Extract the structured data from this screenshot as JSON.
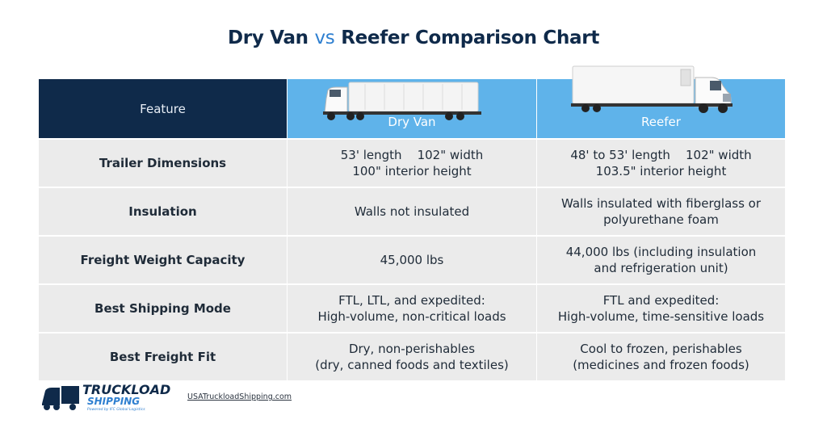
{
  "title": {
    "part1": "Dry Van",
    "vs": "vs",
    "part2": "Reefer Comparison Chart"
  },
  "header": {
    "feature": "Feature",
    "dry_van": "Dry Van",
    "reefer": "Reefer"
  },
  "rows": [
    {
      "feature": "Trailer Dimensions",
      "dry_van": [
        "53' length    102\" width",
        "100\" interior height"
      ],
      "reefer": [
        "48' to 53' length    102\" width",
        "103.5\" interior height"
      ]
    },
    {
      "feature": "Insulation",
      "dry_van": [
        "Walls not insulated"
      ],
      "reefer": [
        "Walls insulated with fiberglass or",
        "polyurethane foam"
      ]
    },
    {
      "feature": "Freight Weight Capacity",
      "dry_van": [
        "45,000 lbs"
      ],
      "reefer": [
        "44,000 lbs (including insulation",
        "and refrigeration unit)"
      ]
    },
    {
      "feature": "Best Shipping Mode",
      "dry_van": [
        "FTL, LTL, and expedited:",
        "High-volume, non-critical loads"
      ],
      "reefer": [
        "FTL and expedited:",
        "High-volume, time-sensitive loads"
      ]
    },
    {
      "feature": "Best Freight Fit",
      "dry_van": [
        "Dry, non-perishables",
        "(dry, canned foods and textiles)"
      ],
      "reefer": [
        "Cool to frozen, perishables",
        "(medicines and frozen foods)"
      ]
    }
  ],
  "footer": {
    "logo_line1": "TRUCKLOAD",
    "logo_line2": "SHIPPING",
    "logo_tagline": "Powered by IFC Global Logistics",
    "url": "USATruckloadShipping.com"
  },
  "colors": {
    "navy": "#0f2a4a",
    "header_blue": "#5fb3ea",
    "row_gray": "#ebebeb",
    "accent_blue": "#2e7fd0"
  },
  "icons": [
    "dry-van-truck-icon",
    "reefer-truck-icon",
    "truckload-shipping-logo"
  ]
}
